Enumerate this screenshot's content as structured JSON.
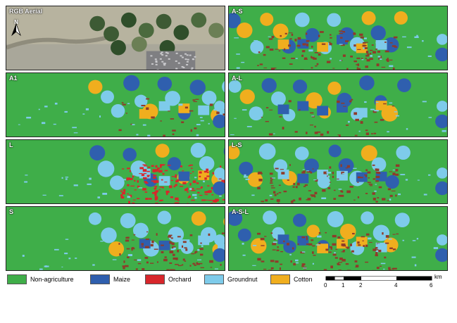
{
  "panels": [
    {
      "label": "RGB Aerial",
      "kind": "rgb"
    },
    {
      "label": "A-S",
      "kind": "map"
    },
    {
      "label": "A1",
      "kind": "map"
    },
    {
      "label": "A-L",
      "kind": "map"
    },
    {
      "label": "L",
      "kind": "map"
    },
    {
      "label": "L-S",
      "kind": "map"
    },
    {
      "label": "S",
      "kind": "map"
    },
    {
      "label": "A-S-L",
      "kind": "map"
    }
  ],
  "north_arrow": {
    "label": "N"
  },
  "legend": [
    {
      "label": "Non-agriculture",
      "color": "#3fae49"
    },
    {
      "label": "Maize",
      "color": "#2f5fae"
    },
    {
      "label": "Orchard",
      "color": "#d8262b"
    },
    {
      "label": "Groundnut",
      "color": "#7ecbea"
    },
    {
      "label": "Cotton",
      "color": "#f0ae1e"
    }
  ],
  "scale_bar": {
    "unit": "km",
    "ticks": [
      "0",
      "1",
      "2",
      "4",
      "6"
    ]
  }
}
